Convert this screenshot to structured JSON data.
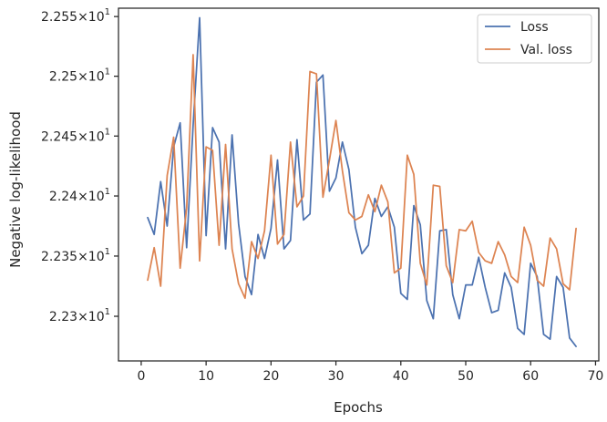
{
  "chart_data": {
    "type": "line",
    "title": "",
    "xlabel": "Epochs",
    "ylabel": "Negative log-likelihood",
    "xlim": [
      -3.5,
      70.5
    ],
    "ylim": [
      22.263,
      22.557
    ],
    "xticks": [
      0,
      10,
      20,
      30,
      40,
      50,
      60,
      70
    ],
    "xtick_labels": [
      "0",
      "10",
      "20",
      "30",
      "40",
      "50",
      "60",
      "70"
    ],
    "yticks": [
      22.3,
      22.35,
      22.4,
      22.45,
      22.5,
      22.55
    ],
    "ytick_mantissas": [
      "2.23",
      "2.235",
      "2.24",
      "2.245",
      "2.25",
      "2.255"
    ],
    "ytick_base": "10",
    "ytick_exponent": "1",
    "ytick_times": "×",
    "y_scale": "log",
    "grid": false,
    "legend_position": "upper right",
    "series": [
      {
        "name": "Loss",
        "color": "#4c72b0",
        "x": [
          1,
          2,
          3,
          4,
          5,
          6,
          7,
          8,
          9,
          10,
          11,
          12,
          13,
          14,
          15,
          16,
          17,
          18,
          19,
          20,
          21,
          22,
          23,
          24,
          25,
          26,
          27,
          28,
          29,
          30,
          31,
          32,
          33,
          34,
          35,
          36,
          37,
          38,
          39,
          40,
          41,
          42,
          43,
          44,
          45,
          46,
          47,
          48,
          49,
          50,
          51,
          52,
          53,
          54,
          55,
          56,
          57,
          58,
          59,
          60,
          61,
          62,
          63,
          64,
          65,
          66,
          67
        ],
        "values": [
          22.382,
          22.368,
          22.412,
          22.375,
          22.441,
          22.461,
          22.357,
          22.459,
          22.549,
          22.367,
          22.457,
          22.445,
          22.356,
          22.451,
          22.377,
          22.333,
          22.318,
          22.368,
          22.348,
          22.373,
          22.43,
          22.356,
          22.363,
          22.447,
          22.38,
          22.385,
          22.495,
          22.501,
          22.404,
          22.415,
          22.445,
          22.422,
          22.374,
          22.352,
          22.359,
          22.398,
          22.383,
          22.391,
          22.374,
          22.319,
          22.314,
          22.392,
          22.376,
          22.313,
          22.298,
          22.371,
          22.372,
          22.318,
          22.298,
          22.326,
          22.326,
          22.349,
          22.324,
          22.303,
          22.305,
          22.336,
          22.324,
          22.29,
          22.285,
          22.344,
          22.333,
          22.285,
          22.281,
          22.333,
          22.324,
          22.282,
          22.275
        ]
      },
      {
        "name": "Val. loss",
        "color": "#dd8452",
        "x": [
          1,
          2,
          3,
          4,
          5,
          6,
          7,
          8,
          9,
          10,
          11,
          12,
          13,
          14,
          15,
          16,
          17,
          18,
          19,
          20,
          21,
          22,
          23,
          24,
          25,
          26,
          27,
          28,
          29,
          30,
          31,
          32,
          33,
          34,
          35,
          36,
          37,
          38,
          39,
          40,
          41,
          42,
          43,
          44,
          45,
          46,
          47,
          48,
          49,
          50,
          51,
          52,
          53,
          54,
          55,
          56,
          57,
          58,
          59,
          60,
          61,
          62,
          63,
          64,
          65,
          66,
          67
        ],
        "values": [
          22.33,
          22.357,
          22.325,
          22.417,
          22.449,
          22.34,
          22.39,
          22.518,
          22.346,
          22.441,
          22.438,
          22.359,
          22.443,
          22.356,
          22.327,
          22.315,
          22.362,
          22.348,
          22.371,
          22.434,
          22.36,
          22.368,
          22.445,
          22.391,
          22.4,
          22.504,
          22.502,
          22.399,
          22.43,
          22.463,
          22.421,
          22.386,
          22.38,
          22.383,
          22.401,
          22.387,
          22.409,
          22.395,
          22.336,
          22.34,
          22.434,
          22.418,
          22.344,
          22.326,
          22.409,
          22.408,
          22.342,
          22.328,
          22.372,
          22.371,
          22.379,
          22.353,
          22.346,
          22.344,
          22.362,
          22.351,
          22.333,
          22.328,
          22.374,
          22.359,
          22.33,
          22.325,
          22.365,
          22.356,
          22.327,
          22.322,
          22.373
        ]
      }
    ]
  }
}
